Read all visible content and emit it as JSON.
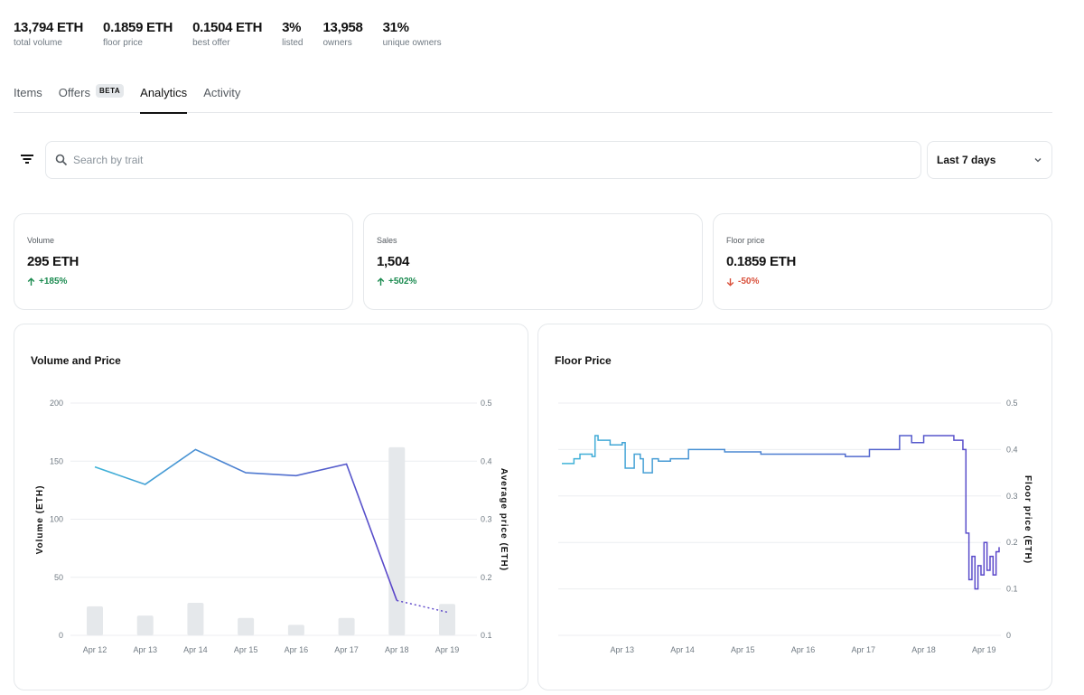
{
  "stats": [
    {
      "value": "13,794 ETH",
      "label": "total volume"
    },
    {
      "value": "0.1859 ETH",
      "label": "floor price"
    },
    {
      "value": "0.1504 ETH",
      "label": "best offer"
    },
    {
      "value": "3%",
      "label": "listed"
    },
    {
      "value": "13,958",
      "label": "owners"
    },
    {
      "value": "31%",
      "label": "unique owners"
    }
  ],
  "tabs": {
    "items": "Items",
    "offers": "Offers",
    "offers_badge": "BETA",
    "analytics": "Analytics",
    "activity": "Activity"
  },
  "search": {
    "placeholder": "Search by trait",
    "value": ""
  },
  "range_select": {
    "value": "Last 7 days"
  },
  "cards": [
    {
      "label": "Volume",
      "value": "295 ETH",
      "change": "+185%",
      "direction": "up"
    },
    {
      "label": "Sales",
      "value": "1,504",
      "change": "+502%",
      "direction": "up"
    },
    {
      "label": "Floor price",
      "value": "0.1859 ETH",
      "change": "-50%",
      "direction": "down"
    }
  ],
  "colors": {
    "accent_up": "#1a8a4f",
    "accent_down": "#d9513c",
    "line_start": "#3fb4d8",
    "line_end": "#5b45c9",
    "bar": "#e5e8eb"
  },
  "chart_data": [
    {
      "type": "bar",
      "title": "Volume and Price",
      "categories": [
        "Apr 12",
        "Apr 13",
        "Apr 14",
        "Apr 15",
        "Apr 16",
        "Apr 17",
        "Apr 18",
        "Apr 19"
      ],
      "series": [
        {
          "name": "",
          "type": "bar",
          "axis": "left",
          "values": [
            25,
            17,
            28,
            15,
            9,
            15,
            162,
            27
          ]
        },
        {
          "name": "",
          "type": "line",
          "axis": "right",
          "values": [
            0.39,
            0.36,
            0.42,
            0.38,
            0.375,
            0.395,
            0.16,
            0.14
          ]
        }
      ],
      "ylabel": "Volume (ETH)",
      "ylabel_right": "Average price (ETH)",
      "ylim": [
        0,
        200
      ],
      "yticks": [
        "0",
        "50",
        "100",
        "150",
        "200"
      ],
      "ylim_right": [
        0.1,
        0.5
      ],
      "yticks_right": [
        "0.1",
        "0.2",
        "0.3",
        "0.4",
        "0.5"
      ],
      "grid": true
    },
    {
      "type": "line",
      "title": "Floor Price",
      "x_labels": [
        "Apr 13",
        "Apr 14",
        "Apr 15",
        "Apr 16",
        "Apr 17",
        "Apr 18",
        "Apr 19"
      ],
      "x": [
        12.0,
        12.1,
        12.2,
        12.3,
        12.5,
        12.55,
        12.6,
        12.8,
        13.0,
        13.05,
        13.2,
        13.3,
        13.35,
        13.5,
        13.6,
        13.8,
        14.0,
        14.1,
        14.25,
        14.3,
        14.5,
        14.7,
        14.8,
        15.0,
        15.3,
        15.5,
        15.7,
        16.0,
        16.2,
        16.5,
        16.7,
        16.9,
        17.1,
        17.3,
        17.5,
        17.6,
        17.8,
        18.0,
        18.2,
        18.4,
        18.5,
        18.65,
        18.7,
        18.75,
        18.8,
        18.85,
        18.9,
        18.95,
        19.0,
        19.05,
        19.1,
        19.15,
        19.2,
        19.25
      ],
      "values": [
        0.37,
        0.37,
        0.38,
        0.39,
        0.385,
        0.43,
        0.42,
        0.41,
        0.415,
        0.36,
        0.39,
        0.38,
        0.35,
        0.38,
        0.375,
        0.38,
        0.38,
        0.4,
        0.4,
        0.4,
        0.4,
        0.395,
        0.395,
        0.395,
        0.39,
        0.39,
        0.39,
        0.39,
        0.39,
        0.39,
        0.385,
        0.385,
        0.4,
        0.4,
        0.4,
        0.43,
        0.415,
        0.43,
        0.43,
        0.43,
        0.42,
        0.4,
        0.22,
        0.12,
        0.17,
        0.1,
        0.15,
        0.13,
        0.2,
        0.14,
        0.17,
        0.13,
        0.18,
        0.19
      ],
      "ylabel": "Floor price (ETH)",
      "ylim": [
        0,
        0.5
      ],
      "yticks": [
        "0",
        "0.1",
        "0.2",
        "0.3",
        "0.4",
        "0.5"
      ],
      "grid": true
    }
  ]
}
